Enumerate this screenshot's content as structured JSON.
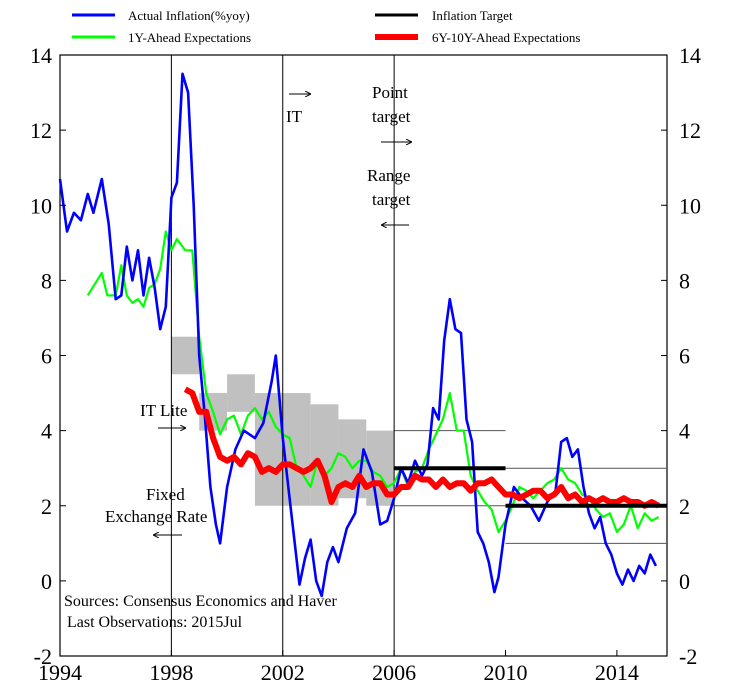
{
  "chart_data": {
    "type": "line",
    "title": "",
    "xlabel": "",
    "ylabel": "",
    "xlim": [
      1994,
      2015.8
    ],
    "ylim": [
      -2,
      14
    ],
    "x_ticks": [
      1994,
      1998,
      2002,
      2006,
      2010,
      2014
    ],
    "y_ticks": [
      -2,
      0,
      2,
      4,
      6,
      8,
      10,
      12,
      14
    ],
    "grid": false,
    "legend_position": "top",
    "series": [
      {
        "name": "Actual Inflation(%yoy)",
        "color": "#0000ff",
        "points": [
          [
            1994.0,
            10.7
          ],
          [
            1994.25,
            9.3
          ],
          [
            1994.5,
            9.8
          ],
          [
            1994.75,
            9.6
          ],
          [
            1995.0,
            10.3
          ],
          [
            1995.2,
            9.8
          ],
          [
            1995.5,
            10.7
          ],
          [
            1995.75,
            9.5
          ],
          [
            1996.0,
            7.5
          ],
          [
            1996.2,
            7.6
          ],
          [
            1996.4,
            8.9
          ],
          [
            1996.6,
            8.0
          ],
          [
            1996.8,
            8.8
          ],
          [
            1997.0,
            7.6
          ],
          [
            1997.2,
            8.6
          ],
          [
            1997.4,
            7.8
          ],
          [
            1997.6,
            6.7
          ],
          [
            1997.8,
            7.3
          ],
          [
            1998.0,
            10.2
          ],
          [
            1998.2,
            10.6
          ],
          [
            1998.4,
            13.5
          ],
          [
            1998.6,
            13.0
          ],
          [
            1998.8,
            10.0
          ],
          [
            1999.0,
            6.0
          ],
          [
            1999.2,
            4.4
          ],
          [
            1999.4,
            2.5
          ],
          [
            1999.6,
            1.5
          ],
          [
            1999.75,
            1.0
          ],
          [
            2000.0,
            2.5
          ],
          [
            2000.3,
            3.5
          ],
          [
            2000.6,
            4.0
          ],
          [
            2001.0,
            3.8
          ],
          [
            2001.3,
            4.2
          ],
          [
            2001.6,
            5.3
          ],
          [
            2001.75,
            6.0
          ],
          [
            2002.0,
            3.8
          ],
          [
            2002.2,
            2.5
          ],
          [
            2002.4,
            1.2
          ],
          [
            2002.6,
            -0.1
          ],
          [
            2002.8,
            0.6
          ],
          [
            2003.0,
            1.1
          ],
          [
            2003.2,
            0.0
          ],
          [
            2003.4,
            -0.4
          ],
          [
            2003.6,
            0.5
          ],
          [
            2003.8,
            0.9
          ],
          [
            2004.0,
            0.5
          ],
          [
            2004.3,
            1.4
          ],
          [
            2004.6,
            1.8
          ],
          [
            2004.9,
            3.5
          ],
          [
            2005.2,
            2.9
          ],
          [
            2005.5,
            1.5
          ],
          [
            2005.75,
            1.6
          ],
          [
            2006.0,
            2.2
          ],
          [
            2006.25,
            3.0
          ],
          [
            2006.5,
            2.6
          ],
          [
            2006.75,
            3.2
          ],
          [
            2007.0,
            2.8
          ],
          [
            2007.2,
            3.1
          ],
          [
            2007.4,
            4.6
          ],
          [
            2007.6,
            4.3
          ],
          [
            2007.8,
            6.4
          ],
          [
            2008.0,
            7.5
          ],
          [
            2008.2,
            6.7
          ],
          [
            2008.4,
            6.6
          ],
          [
            2008.6,
            4.3
          ],
          [
            2008.8,
            3.7
          ],
          [
            2009.0,
            1.3
          ],
          [
            2009.2,
            1.0
          ],
          [
            2009.4,
            0.5
          ],
          [
            2009.6,
            -0.3
          ],
          [
            2009.75,
            0.1
          ],
          [
            2010.0,
            1.5
          ],
          [
            2010.3,
            2.5
          ],
          [
            2010.6,
            2.2
          ],
          [
            2010.9,
            2.0
          ],
          [
            2011.2,
            1.6
          ],
          [
            2011.5,
            2.1
          ],
          [
            2011.8,
            2.4
          ],
          [
            2012.0,
            3.7
          ],
          [
            2012.2,
            3.8
          ],
          [
            2012.4,
            3.3
          ],
          [
            2012.6,
            3.5
          ],
          [
            2012.8,
            2.5
          ],
          [
            2013.0,
            1.8
          ],
          [
            2013.2,
            1.4
          ],
          [
            2013.4,
            1.7
          ],
          [
            2013.6,
            1.0
          ],
          [
            2013.8,
            0.7
          ],
          [
            2014.0,
            0.2
          ],
          [
            2014.2,
            -0.1
          ],
          [
            2014.4,
            0.3
          ],
          [
            2014.6,
            0.0
          ],
          [
            2014.8,
            0.4
          ],
          [
            2015.0,
            0.2
          ],
          [
            2015.2,
            0.7
          ],
          [
            2015.4,
            0.4
          ]
        ]
      },
      {
        "name": "1Y-Ahead Expectations",
        "color": "#00ff00",
        "points": [
          [
            1995.0,
            7.6
          ],
          [
            1995.25,
            7.9
          ],
          [
            1995.5,
            8.2
          ],
          [
            1995.7,
            7.6
          ],
          [
            1996.0,
            7.6
          ],
          [
            1996.2,
            8.4
          ],
          [
            1996.4,
            7.6
          ],
          [
            1996.6,
            7.4
          ],
          [
            1996.8,
            7.5
          ],
          [
            1997.0,
            7.3
          ],
          [
            1997.2,
            7.8
          ],
          [
            1997.4,
            7.9
          ],
          [
            1997.6,
            8.3
          ],
          [
            1997.8,
            9.3
          ],
          [
            1998.0,
            8.8
          ],
          [
            1998.2,
            9.1
          ],
          [
            1998.5,
            8.8
          ],
          [
            1998.75,
            8.8
          ],
          [
            1999.0,
            6.5
          ],
          [
            1999.25,
            5.0
          ],
          [
            1999.5,
            4.5
          ],
          [
            1999.75,
            3.9
          ],
          [
            2000.0,
            4.3
          ],
          [
            2000.25,
            4.4
          ],
          [
            2000.5,
            3.9
          ],
          [
            2000.75,
            4.4
          ],
          [
            2001.0,
            4.6
          ],
          [
            2001.25,
            4.3
          ],
          [
            2001.5,
            4.5
          ],
          [
            2001.75,
            4.1
          ],
          [
            2002.0,
            3.9
          ],
          [
            2002.25,
            3.8
          ],
          [
            2002.5,
            3.0
          ],
          [
            2002.75,
            2.8
          ],
          [
            2003.0,
            2.5
          ],
          [
            2003.25,
            3.2
          ],
          [
            2003.5,
            2.8
          ],
          [
            2003.75,
            3.0
          ],
          [
            2004.0,
            3.4
          ],
          [
            2004.25,
            3.3
          ],
          [
            2004.5,
            3.0
          ],
          [
            2004.75,
            3.2
          ],
          [
            2005.0,
            3.2
          ],
          [
            2005.25,
            2.9
          ],
          [
            2005.5,
            2.8
          ],
          [
            2005.75,
            2.5
          ],
          [
            2006.0,
            2.6
          ],
          [
            2006.25,
            3.0
          ],
          [
            2006.5,
            2.5
          ],
          [
            2006.75,
            2.9
          ],
          [
            2007.0,
            3.0
          ],
          [
            2007.25,
            3.5
          ],
          [
            2007.5,
            3.9
          ],
          [
            2007.75,
            4.3
          ],
          [
            2008.0,
            5.0
          ],
          [
            2008.25,
            4.0
          ],
          [
            2008.5,
            4.0
          ],
          [
            2008.75,
            2.8
          ],
          [
            2009.0,
            2.4
          ],
          [
            2009.25,
            2.1
          ],
          [
            2009.5,
            1.9
          ],
          [
            2009.75,
            1.3
          ],
          [
            2010.0,
            1.6
          ],
          [
            2010.25,
            2.0
          ],
          [
            2010.5,
            2.5
          ],
          [
            2010.75,
            2.4
          ],
          [
            2011.0,
            2.2
          ],
          [
            2011.25,
            2.4
          ],
          [
            2011.5,
            2.6
          ],
          [
            2011.75,
            2.7
          ],
          [
            2012.0,
            3.0
          ],
          [
            2012.25,
            2.7
          ],
          [
            2012.5,
            2.6
          ],
          [
            2012.75,
            2.3
          ],
          [
            2013.0,
            2.2
          ],
          [
            2013.25,
            1.9
          ],
          [
            2013.5,
            1.7
          ],
          [
            2013.75,
            1.8
          ],
          [
            2014.0,
            1.3
          ],
          [
            2014.25,
            1.5
          ],
          [
            2014.5,
            2.0
          ],
          [
            2014.75,
            1.4
          ],
          [
            2015.0,
            1.8
          ],
          [
            2015.25,
            1.6
          ],
          [
            2015.5,
            1.7
          ]
        ]
      },
      {
        "name": "6Y-10Y-Ahead Expectations",
        "color": "#ff0000",
        "points": [
          [
            1998.5,
            5.1
          ],
          [
            1998.75,
            5.0
          ],
          [
            1999.0,
            4.5
          ],
          [
            1999.25,
            4.5
          ],
          [
            1999.5,
            3.8
          ],
          [
            1999.75,
            3.3
          ],
          [
            2000.0,
            3.2
          ],
          [
            2000.25,
            3.3
          ],
          [
            2000.5,
            3.1
          ],
          [
            2000.75,
            3.4
          ],
          [
            2001.0,
            3.3
          ],
          [
            2001.25,
            2.9
          ],
          [
            2001.5,
            3.0
          ],
          [
            2001.75,
            2.9
          ],
          [
            2002.0,
            3.1
          ],
          [
            2002.25,
            3.1
          ],
          [
            2002.5,
            3.0
          ],
          [
            2002.75,
            2.9
          ],
          [
            2003.0,
            3.0
          ],
          [
            2003.25,
            3.2
          ],
          [
            2003.5,
            2.8
          ],
          [
            2003.75,
            2.1
          ],
          [
            2004.0,
            2.5
          ],
          [
            2004.25,
            2.6
          ],
          [
            2004.5,
            2.5
          ],
          [
            2004.75,
            2.8
          ],
          [
            2005.0,
            2.5
          ],
          [
            2005.25,
            2.6
          ],
          [
            2005.5,
            2.6
          ],
          [
            2005.75,
            2.3
          ],
          [
            2006.0,
            2.3
          ],
          [
            2006.25,
            2.5
          ],
          [
            2006.5,
            2.5
          ],
          [
            2006.75,
            2.8
          ],
          [
            2007.0,
            2.7
          ],
          [
            2007.25,
            2.7
          ],
          [
            2007.5,
            2.5
          ],
          [
            2007.75,
            2.7
          ],
          [
            2008.0,
            2.5
          ],
          [
            2008.25,
            2.6
          ],
          [
            2008.5,
            2.6
          ],
          [
            2008.75,
            2.4
          ],
          [
            2009.0,
            2.6
          ],
          [
            2009.25,
            2.6
          ],
          [
            2009.5,
            2.7
          ],
          [
            2009.75,
            2.5
          ],
          [
            2010.0,
            2.3
          ],
          [
            2010.25,
            2.3
          ],
          [
            2010.5,
            2.2
          ],
          [
            2010.75,
            2.3
          ],
          [
            2011.0,
            2.4
          ],
          [
            2011.25,
            2.4
          ],
          [
            2011.5,
            2.2
          ],
          [
            2011.75,
            2.3
          ],
          [
            2012.0,
            2.5
          ],
          [
            2012.25,
            2.2
          ],
          [
            2012.5,
            2.3
          ],
          [
            2012.75,
            2.1
          ],
          [
            2013.0,
            2.2
          ],
          [
            2013.25,
            2.1
          ],
          [
            2013.5,
            2.2
          ],
          [
            2013.75,
            2.1
          ],
          [
            2014.0,
            2.1
          ],
          [
            2014.25,
            2.2
          ],
          [
            2014.5,
            2.1
          ],
          [
            2014.75,
            2.1
          ],
          [
            2015.0,
            2.0
          ],
          [
            2015.25,
            2.1
          ],
          [
            2015.5,
            2.0
          ]
        ]
      },
      {
        "name": "Inflation Target",
        "color": "#000000",
        "segments": [
          [
            [
              2006.0,
              3.0
            ],
            [
              2010.0,
              3.0
            ]
          ],
          [
            [
              2010.0,
              2.0
            ],
            [
              2015.8,
              2.0
            ]
          ]
        ]
      }
    ],
    "target_bands": [
      {
        "x": [
          1998.0,
          1999.0
        ],
        "y": [
          5.5,
          6.5
        ]
      },
      {
        "x": [
          1999.0,
          2000.0
        ],
        "y": [
          4.0,
          5.0
        ]
      },
      {
        "x": [
          2000.0,
          2001.0
        ],
        "y": [
          4.5,
          5.5
        ]
      },
      {
        "x": [
          2001.0,
          2002.0
        ],
        "y": [
          2.0,
          5.0
        ]
      },
      {
        "x": [
          2002.0,
          2003.0
        ],
        "y": [
          2.0,
          5.0
        ]
      },
      {
        "x": [
          2003.0,
          2004.0
        ],
        "y": [
          2.0,
          4.7
        ]
      },
      {
        "x": [
          2004.0,
          2005.0
        ],
        "y": [
          2.2,
          4.3
        ]
      },
      {
        "x": [
          2005.0,
          2006.0
        ],
        "y": [
          2.0,
          4.0
        ]
      }
    ],
    "range_target_lines": [
      {
        "x": [
          2006.0,
          2010.0
        ],
        "y": 4.0
      },
      {
        "x": [
          2006.0,
          2010.0
        ],
        "y": 2.0
      },
      {
        "x": [
          2010.0,
          2015.8
        ],
        "y": 3.0
      },
      {
        "x": [
          2010.0,
          2015.8
        ],
        "y": 1.0
      }
    ],
    "vertical_lines": [
      1998.0,
      2002.0,
      2006.0
    ],
    "annotations": {
      "it": "IT",
      "point_target_line1": "Point",
      "point_target_line2": "target",
      "range_target_line1": "Range",
      "range_target_line2": "target",
      "it_lite": "IT Lite",
      "fixed_line1": "Fixed",
      "fixed_line2": "Exchange Rate",
      "sources": "Sources: Consensus Economics and Haver",
      "last_obs": "Last Observations: 2015Jul"
    }
  }
}
